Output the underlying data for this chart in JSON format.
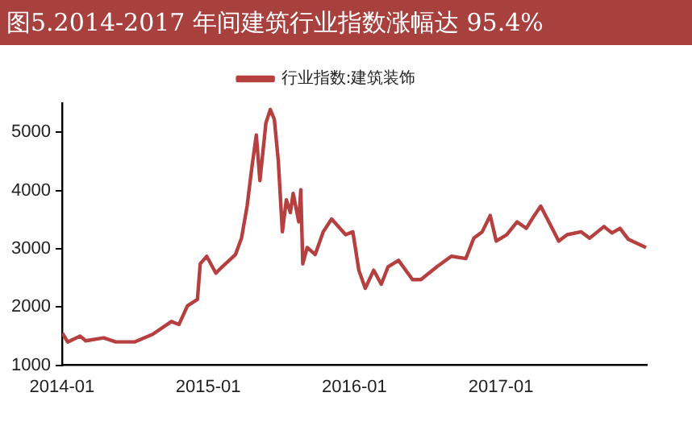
{
  "chart_data": {
    "type": "line",
    "title": "图5.2014-2017 年间建筑行业指数涨幅达 95.4%",
    "legend": "top",
    "x": [
      "2014-01-02",
      "2014-01-15",
      "2014-02-15",
      "2014-03-01",
      "2014-04-15",
      "2014-05-15",
      "2014-07-01",
      "2014-08-15",
      "2014-10-01",
      "2014-10-20",
      "2014-11-10",
      "2014-12-05",
      "2014-12-12",
      "2014-12-28",
      "2015-01-20",
      "2015-02-05",
      "2015-03-10",
      "2015-03-25",
      "2015-04-08",
      "2015-04-20",
      "2015-05-01",
      "2015-05-10",
      "2015-05-20",
      "2015-05-25",
      "2015-06-05",
      "2015-06-15",
      "2015-06-25",
      "2015-07-05",
      "2015-07-15",
      "2015-07-25",
      "2015-08-01",
      "2015-08-15",
      "2015-08-20",
      "2015-08-25",
      "2015-09-05",
      "2015-09-25",
      "2015-10-15",
      "2015-11-05",
      "2015-12-10",
      "2015-12-28",
      "2016-01-12",
      "2016-01-28",
      "2016-02-18",
      "2016-03-08",
      "2016-03-25",
      "2016-04-20",
      "2016-05-25",
      "2016-06-15",
      "2016-07-25",
      "2016-08-30",
      "2016-10-05",
      "2016-10-25",
      "2016-11-15",
      "2016-12-05",
      "2016-12-20",
      "2017-01-15",
      "2017-02-10",
      "2017-03-05",
      "2017-03-25",
      "2017-04-10",
      "2017-05-05",
      "2017-05-25",
      "2017-06-15",
      "2017-07-20",
      "2017-08-10",
      "2017-09-15",
      "2017-10-05",
      "2017-10-25",
      "2017-11-15",
      "2017-12-29"
    ],
    "series": [
      {
        "name": "行业指数:建筑装饰",
        "color": "#b5403f",
        "values": [
          1550,
          1400,
          1500,
          1420,
          1470,
          1400,
          1400,
          1530,
          1750,
          1700,
          2020,
          2130,
          2740,
          2870,
          2580,
          2690,
          2900,
          3180,
          3730,
          4400,
          4950,
          4170,
          4830,
          5160,
          5390,
          5220,
          4500,
          3290,
          3840,
          3620,
          3950,
          3460,
          4010,
          2740,
          3020,
          2900,
          3290,
          3510,
          3240,
          3290,
          2630,
          2320,
          2630,
          2390,
          2690,
          2800,
          2470,
          2470,
          2690,
          2870,
          2830,
          3180,
          3290,
          3570,
          3130,
          3240,
          3460,
          3350,
          3570,
          3730,
          3400,
          3130,
          3240,
          3290,
          3180,
          3380,
          3270,
          3350,
          3160,
          3020
        ]
      }
    ],
    "xlim": [
      "2014-01-01",
      "2017-12-31"
    ],
    "xticks": [
      "2014-01",
      "2015-01",
      "2016-01",
      "2017-01"
    ],
    "ylim": [
      1000,
      5500
    ],
    "yticks": [
      1000,
      2000,
      3000,
      4000,
      5000
    ],
    "grid": false,
    "marker": "none",
    "line_style": "solid"
  }
}
